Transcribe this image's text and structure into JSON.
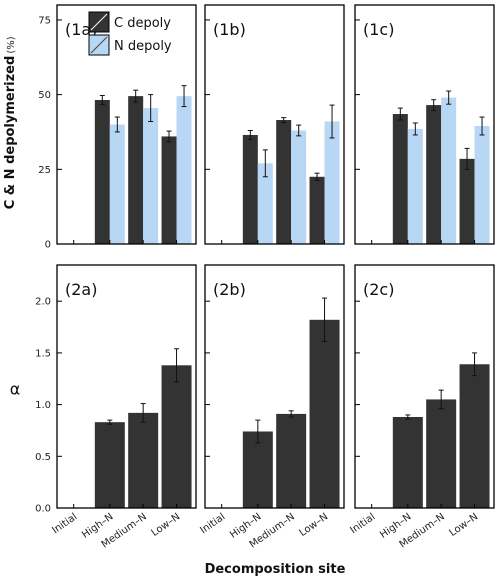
{
  "chart_data": {
    "type": "bar",
    "categories": [
      "Initial",
      "High–N",
      "Medium–N",
      "Low–N"
    ],
    "xlabel": "Decomposition site",
    "legend": {
      "placement": "top-left",
      "entries": [
        "C depoly",
        "N depoly"
      ]
    },
    "colors": {
      "C": "#333333",
      "N": "#b7d7f5",
      "frame": "#000000"
    },
    "rows": [
      {
        "ylabel_parts": [
          "C",
          "&",
          "N",
          "depolymerized"
        ],
        "ylabel_unit": "(%)",
        "ylim": [
          0,
          80
        ],
        "yticks": [
          0,
          25,
          50,
          75
        ],
        "panels": [
          {
            "label": "(1a)",
            "series": [
              {
                "name": "C depoly",
                "values": [
                  null,
                  48.2,
                  49.5,
                  36.0
                ],
                "errors": [
                  null,
                  1.5,
                  2.0,
                  1.8
                ]
              },
              {
                "name": "N depoly",
                "values": [
                  null,
                  40.0,
                  45.5,
                  49.5
                ],
                "errors": [
                  null,
                  2.5,
                  4.5,
                  3.5
                ]
              }
            ]
          },
          {
            "label": "(1b)",
            "series": [
              {
                "name": "C depoly",
                "values": [
                  null,
                  36.5,
                  41.5,
                  22.5
                ],
                "errors": [
                  null,
                  1.5,
                  0.8,
                  1.2
                ]
              },
              {
                "name": "N depoly",
                "values": [
                  null,
                  27.0,
                  38.0,
                  41.0
                ],
                "errors": [
                  null,
                  4.5,
                  1.8,
                  5.5
                ]
              }
            ]
          },
          {
            "label": "(1c)",
            "series": [
              {
                "name": "C depoly",
                "values": [
                  null,
                  43.5,
                  46.5,
                  28.5
                ],
                "errors": [
                  null,
                  2.0,
                  1.8,
                  3.5
                ]
              },
              {
                "name": "N depoly",
                "values": [
                  null,
                  38.5,
                  49.0,
                  39.5
                ],
                "errors": [
                  null,
                  2.0,
                  2.2,
                  3.0
                ]
              }
            ]
          }
        ]
      },
      {
        "ylabel": "α",
        "ylim": [
          0,
          2.35
        ],
        "yticks": [
          "0.0",
          "0.5",
          "1.0",
          "1.5",
          "2.0"
        ],
        "panels": [
          {
            "label": "(2a)",
            "series": [
              {
                "name": "alpha",
                "values": [
                  null,
                  0.83,
                  0.92,
                  1.38
                ],
                "errors": [
                  null,
                  0.02,
                  0.09,
                  0.16
                ]
              }
            ]
          },
          {
            "label": "(2b)",
            "series": [
              {
                "name": "alpha",
                "values": [
                  null,
                  0.74,
                  0.91,
                  1.82
                ],
                "errors": [
                  null,
                  0.11,
                  0.03,
                  0.21
                ]
              }
            ]
          },
          {
            "label": "(2c)",
            "series": [
              {
                "name": "alpha",
                "values": [
                  null,
                  0.88,
                  1.05,
                  1.39
                ],
                "errors": [
                  null,
                  0.02,
                  0.09,
                  0.11
                ]
              }
            ]
          }
        ]
      }
    ]
  }
}
